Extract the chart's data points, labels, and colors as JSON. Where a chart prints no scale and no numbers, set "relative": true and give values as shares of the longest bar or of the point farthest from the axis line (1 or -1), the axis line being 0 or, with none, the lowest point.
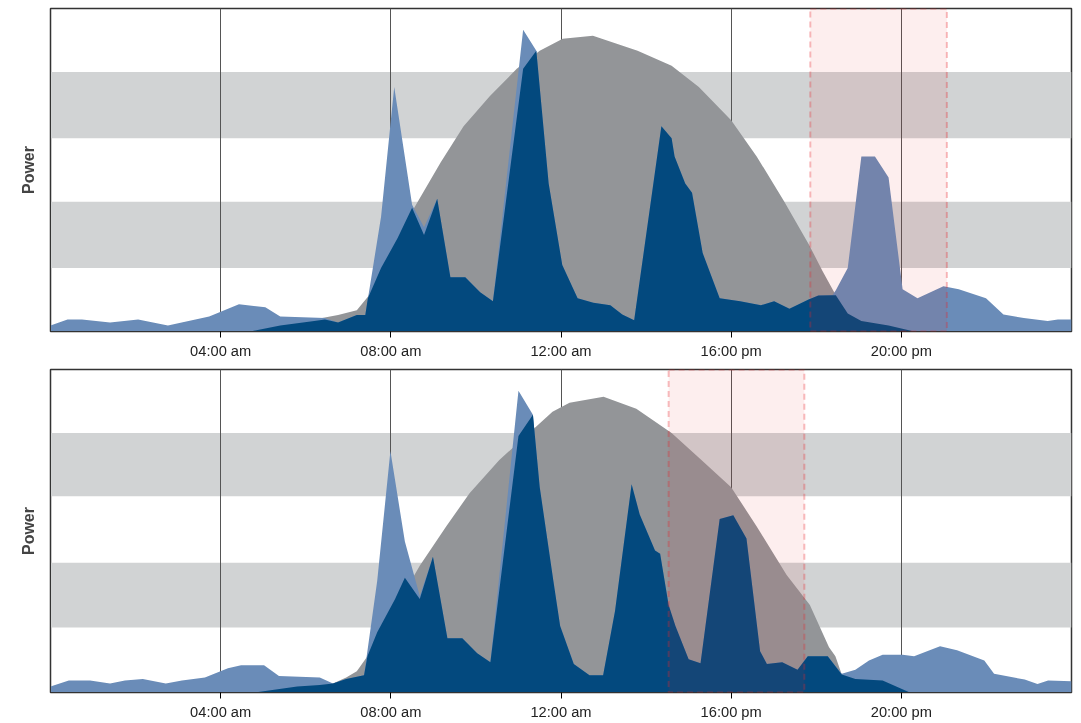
{
  "chart_data": [
    {
      "type": "area",
      "ylabel": "Power",
      "relative": true,
      "xlim": [
        0,
        24
      ],
      "xticks": [
        {
          "value": 4,
          "label": "04:00 am"
        },
        {
          "value": 8,
          "label": "08:00 am"
        },
        {
          "value": 12,
          "label": "12:00 am"
        },
        {
          "value": 16,
          "label": "16:00 pm"
        },
        {
          "value": 20,
          "label": "20:00 pm"
        }
      ],
      "grid": "x",
      "tick_labels": "x",
      "bands": [
        {
          "axis": "y",
          "from": 0.21,
          "to": 0.43,
          "color": "#d1d3d4"
        },
        {
          "axis": "y",
          "from": 0.64,
          "to": 0.86,
          "color": "#d1d3d4"
        },
        {
          "axis": "x",
          "from": 17.86,
          "to": 21.07,
          "color": "#e8262a"
        }
      ],
      "series": [
        {
          "color": "#939598",
          "x": [
            4.7,
            6.76,
            7.2,
            7.46,
            8.55,
            9.17,
            9.71,
            10.33,
            10.96,
            11.5,
            12.04,
            12.75,
            13.8,
            14.6,
            15.24,
            16.0,
            16.6,
            17.25,
            17.82,
            18.15,
            18.46,
            20.3
          ],
          "values": [
            0,
            0.055,
            0.07,
            0.115,
            0.41,
            0.56,
            0.68,
            0.78,
            0.87,
            0.93,
            0.97,
            0.98,
            0.93,
            0.88,
            0.81,
            0.7,
            0.58,
            0.43,
            0.29,
            0.2,
            0.12,
            0
          ]
        },
        {
          "color": "#6a8cb8",
          "x": [
            0,
            0.4,
            0.74,
            1.4,
            2.06,
            2.76,
            3.73,
            4.43,
            5.05,
            5.4,
            6.45,
            6.76,
            7.2,
            7.4,
            7.77,
            8.08,
            8.5,
            8.78,
            9.09,
            9.4,
            9.75,
            10.1,
            10.4,
            11.11,
            11.42,
            11.71,
            12.03,
            12.39,
            12.76,
            13.16,
            13.44,
            13.72,
            14.36,
            14.6,
            14.67,
            14.92,
            15.08,
            15.33,
            15.73,
            16.21,
            16.7,
            17.01,
            17.37,
            17.82,
            18.05,
            18.38,
            18.46,
            18.74,
            19.06,
            19.38,
            19.7,
            20.03,
            20.38,
            20.99,
            21.35,
            21.99,
            22.4,
            22.88,
            23.44,
            23.68,
            24
          ],
          "values": [
            0.02,
            0.04,
            0.04,
            0.03,
            0.04,
            0.02,
            0.05,
            0.09,
            0.08,
            0.05,
            0.045,
            0.03,
            0.055,
            0.055,
            0.38,
            0.81,
            0.42,
            0.345,
            0.44,
            0.18,
            0.18,
            0.13,
            0.1,
            1.0,
            0.93,
            0.49,
            0.22,
            0.11,
            0.095,
            0.087,
            0.056,
            0.037,
            0.68,
            0.64,
            0.58,
            0.49,
            0.46,
            0.26,
            0.11,
            0.1,
            0.087,
            0.1,
            0.075,
            0.106,
            0.119,
            0.12,
            0.137,
            0.21,
            0.58,
            0.58,
            0.51,
            0.14,
            0.11,
            0.15,
            0.14,
            0.11,
            0.056,
            0.045,
            0.035,
            0.04,
            0.04
          ]
        },
        {
          "color": "#03497e",
          "x": [
            4.7,
            5.4,
            6.2,
            6.45,
            6.76,
            7.2,
            7.4,
            7.46,
            7.77,
            8.16,
            8.5,
            8.78,
            9.09,
            9.4,
            9.75,
            10.1,
            10.4,
            11.11,
            11.42,
            11.71,
            12.03,
            12.39,
            12.76,
            13.16,
            13.44,
            13.72,
            14.36,
            14.6,
            14.67,
            14.92,
            15.08,
            15.33,
            15.73,
            16.21,
            16.7,
            17.01,
            17.37,
            17.82,
            18.05,
            18.38,
            18.46,
            18.74,
            19.06,
            19.7,
            20.3
          ],
          "values": [
            0,
            0.02,
            0.035,
            0.04,
            0.03,
            0.055,
            0.055,
            0.11,
            0.21,
            0.31,
            0.41,
            0.32,
            0.44,
            0.18,
            0.18,
            0.13,
            0.1,
            0.87,
            0.93,
            0.49,
            0.22,
            0.11,
            0.095,
            0.087,
            0.056,
            0.037,
            0.68,
            0.64,
            0.58,
            0.49,
            0.46,
            0.26,
            0.11,
            0.1,
            0.087,
            0.1,
            0.075,
            0.106,
            0.119,
            0.12,
            0.12,
            0.06,
            0.035,
            0.02,
            0
          ]
        }
      ]
    },
    {
      "type": "area",
      "ylabel": "Power",
      "relative": true,
      "xlim": [
        0,
        24
      ],
      "xticks": [
        {
          "value": 4,
          "label": "04:00 am"
        },
        {
          "value": 8,
          "label": "08:00 am"
        },
        {
          "value": 12,
          "label": "12:00 am"
        },
        {
          "value": 16,
          "label": "16:00 pm"
        },
        {
          "value": 20,
          "label": "20:00 pm"
        }
      ],
      "grid": "x",
      "tick_labels": "x",
      "bands": [
        {
          "axis": "y",
          "from": 0.215,
          "to": 0.43,
          "color": "#d1d3d4"
        },
        {
          "axis": "y",
          "from": 0.65,
          "to": 0.86,
          "color": "#d1d3d4"
        },
        {
          "axis": "x",
          "from": 14.53,
          "to": 17.72,
          "color": "#e8262a"
        }
      ],
      "series": [
        {
          "color": "#939598",
          "x": [
            4.8,
            6.64,
            6.95,
            7.2,
            7.45,
            8.68,
            9.3,
            9.85,
            10.55,
            11.8,
            12.2,
            13.0,
            13.77,
            14.6,
            15.3,
            16.0,
            16.6,
            17.3,
            17.85,
            18.3,
            18.45,
            18.6,
            20.2
          ],
          "values": [
            0,
            0.03,
            0.05,
            0.07,
            0.12,
            0.42,
            0.55,
            0.66,
            0.77,
            0.93,
            0.96,
            0.98,
            0.94,
            0.86,
            0.77,
            0.68,
            0.55,
            0.39,
            0.29,
            0.15,
            0.12,
            0.06,
            0
          ]
        },
        {
          "color": "#6a8cb8",
          "x": [
            0,
            0.43,
            0.93,
            1.4,
            1.75,
            2.17,
            2.71,
            3.09,
            3.63,
            4.17,
            4.48,
            5.02,
            5.37,
            6.33,
            6.64,
            6.95,
            7.37,
            7.68,
            7.99,
            8.33,
            8.68,
            8.99,
            9.33,
            9.68,
            10.03,
            10.34,
            11.0,
            11.34,
            11.5,
            11.82,
            11.98,
            12.3,
            12.67,
            12.99,
            13.27,
            13.66,
            13.85,
            14.21,
            14.33,
            14.53,
            14.69,
            15.0,
            15.28,
            15.73,
            16.05,
            16.36,
            16.68,
            16.84,
            17.2,
            17.56,
            17.8,
            18.27,
            18.6,
            18.92,
            19.24,
            19.56,
            20.03,
            20.3,
            20.91,
            21.31,
            21.95,
            22.18,
            22.9,
            23.2,
            23.45,
            24
          ],
          "values": [
            0.02,
            0.04,
            0.04,
            0.03,
            0.04,
            0.045,
            0.03,
            0.04,
            0.05,
            0.08,
            0.09,
            0.09,
            0.055,
            0.05,
            0.03,
            0.045,
            0.057,
            0.37,
            0.8,
            0.5,
            0.32,
            0.45,
            0.18,
            0.18,
            0.13,
            0.1,
            1.0,
            0.92,
            0.68,
            0.37,
            0.22,
            0.094,
            0.057,
            0.057,
            0.27,
            0.69,
            0.59,
            0.47,
            0.46,
            0.29,
            0.22,
            0.11,
            0.097,
            0.575,
            0.587,
            0.51,
            0.137,
            0.094,
            0.1,
            0.075,
            0.12,
            0.12,
            0.062,
            0.075,
            0.106,
            0.125,
            0.125,
            0.12,
            0.153,
            0.14,
            0.106,
            0.062,
            0.043,
            0.028,
            0.04,
            0.037
          ]
        },
        {
          "color": "#03497e",
          "x": [
            4.8,
            5.8,
            6.33,
            6.64,
            6.95,
            7.37,
            7.45,
            7.68,
            8.1,
            8.33,
            8.68,
            8.99,
            9.33,
            9.68,
            10.03,
            10.34,
            11.0,
            11.34,
            11.5,
            11.82,
            11.98,
            12.3,
            12.67,
            12.99,
            13.27,
            13.66,
            13.85,
            14.21,
            14.33,
            14.53,
            14.69,
            15.0,
            15.28,
            15.73,
            16.05,
            16.36,
            16.68,
            16.84,
            17.2,
            17.56,
            17.8,
            18.27,
            18.6,
            18.92,
            19.56,
            20.2
          ],
          "values": [
            0,
            0.02,
            0.025,
            0.03,
            0.045,
            0.057,
            0.12,
            0.2,
            0.31,
            0.38,
            0.31,
            0.45,
            0.18,
            0.18,
            0.13,
            0.1,
            0.85,
            0.92,
            0.68,
            0.37,
            0.22,
            0.094,
            0.057,
            0.057,
            0.27,
            0.69,
            0.59,
            0.47,
            0.46,
            0.29,
            0.22,
            0.11,
            0.097,
            0.575,
            0.587,
            0.51,
            0.137,
            0.094,
            0.1,
            0.075,
            0.12,
            0.12,
            0.06,
            0.045,
            0.04,
            0
          ]
        }
      ]
    }
  ]
}
